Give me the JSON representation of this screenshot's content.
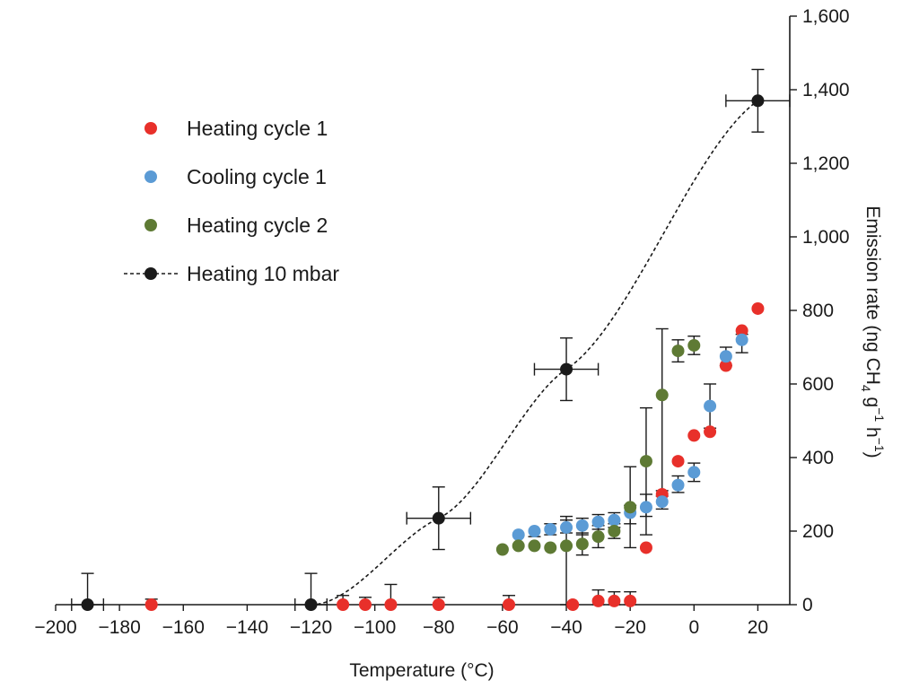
{
  "chart_data": {
    "type": "scatter",
    "title": "",
    "xlabel": "Temperature  (°C)",
    "ylabel": {
      "main": "Emission rate (ng CH",
      "sub": "4",
      "mid": " g",
      "sup1": "−1",
      "mid2": " h",
      "sup2": "−1",
      "end": ")"
    },
    "xlim": [
      -200,
      30
    ],
    "ylim": [
      0,
      1600
    ],
    "xticks": [
      -200,
      -180,
      -160,
      -140,
      -120,
      -100,
      -80,
      -60,
      -40,
      -20,
      0,
      20
    ],
    "xtick_labels": [
      "−200",
      "−180",
      "−160",
      "−140",
      "−120",
      "−100",
      "−80",
      "−60",
      "−40",
      "−20",
      "0",
      "20"
    ],
    "yticks": [
      0,
      200,
      400,
      600,
      800,
      1000,
      1200,
      1400,
      1600
    ],
    "ytick_labels": [
      "0",
      "200",
      "400",
      "600",
      "800",
      "1,000",
      "1,200",
      "1,400",
      "1,600"
    ],
    "y_axis_side": "right",
    "grid": false,
    "legend_position": "upper-left",
    "series": [
      {
        "name": "Heating cycle 1",
        "color": "#e8302a",
        "marker": "circle",
        "points": [
          {
            "x": -170,
            "y": 0,
            "err_up": 15
          },
          {
            "x": -110,
            "y": 0,
            "err_up": 25
          },
          {
            "x": -103,
            "y": 0,
            "err_up": 20
          },
          {
            "x": -95,
            "y": 0,
            "err_up": 55
          },
          {
            "x": -80,
            "y": 0,
            "err_up": 20
          },
          {
            "x": -58,
            "y": 0,
            "err_up": 25
          },
          {
            "x": -38,
            "y": 0
          },
          {
            "x": -30,
            "y": 10,
            "err_up": 30,
            "err_down": 10
          },
          {
            "x": -25,
            "y": 10,
            "err_up": 25,
            "err_down": 10
          },
          {
            "x": -20,
            "y": 10,
            "err_up": 25,
            "err_down": 10
          },
          {
            "x": -15,
            "y": 155
          },
          {
            "x": -10,
            "y": 300
          },
          {
            "x": -5,
            "y": 390
          },
          {
            "x": 0,
            "y": 460
          },
          {
            "x": 5,
            "y": 470
          },
          {
            "x": 10,
            "y": 650
          },
          {
            "x": 15,
            "y": 745
          },
          {
            "x": 20,
            "y": 805
          }
        ]
      },
      {
        "name": "Cooling cycle 1",
        "color": "#5b9bd5",
        "marker": "circle",
        "points": [
          {
            "x": -55,
            "y": 190
          },
          {
            "x": -50,
            "y": 200,
            "err_down": 15
          },
          {
            "x": -45,
            "y": 205,
            "err_up": 15,
            "err_down": 15
          },
          {
            "x": -40,
            "y": 210,
            "err_up": 20,
            "err_down": 15
          },
          {
            "x": -35,
            "y": 215,
            "err_up": 20,
            "err_down": 25
          },
          {
            "x": -30,
            "y": 225,
            "err_up": 20,
            "err_down": 20
          },
          {
            "x": -25,
            "y": 230,
            "err_up": 20,
            "err_down": 20
          },
          {
            "x": -20,
            "y": 250,
            "err_up": 20,
            "err_down": 30
          },
          {
            "x": -15,
            "y": 265,
            "err_up": 35,
            "err_down": 25
          },
          {
            "x": -10,
            "y": 280,
            "err_up": 15,
            "err_down": 20
          },
          {
            "x": -5,
            "y": 325,
            "err_up": 25,
            "err_down": 20
          },
          {
            "x": 0,
            "y": 360,
            "err_up": 25,
            "err_down": 25
          },
          {
            "x": 5,
            "y": 540,
            "err_up": 60,
            "err_down": 60
          },
          {
            "x": 10,
            "y": 675,
            "err_up": 25,
            "err_down": 25
          },
          {
            "x": 15,
            "y": 720,
            "err_up": 15,
            "err_down": 35
          }
        ]
      },
      {
        "name": "Heating cycle 2",
        "color": "#5e7a34",
        "marker": "circle",
        "points": [
          {
            "x": -60,
            "y": 150
          },
          {
            "x": -55,
            "y": 160
          },
          {
            "x": -50,
            "y": 160
          },
          {
            "x": -45,
            "y": 155
          },
          {
            "x": -40,
            "y": 160,
            "err_up": 80,
            "err_down": 160
          },
          {
            "x": -35,
            "y": 165,
            "err_up": 30,
            "err_down": 30
          },
          {
            "x": -30,
            "y": 185,
            "err_up": 30,
            "err_down": 30
          },
          {
            "x": -25,
            "y": 200,
            "err_up": 20,
            "err_down": 20
          },
          {
            "x": -20,
            "y": 265,
            "err_up": 110,
            "err_down": 110
          },
          {
            "x": -15,
            "y": 390,
            "err_up": 145,
            "err_down": 200
          },
          {
            "x": -10,
            "y": 570,
            "err_up": 180,
            "err_down": 260
          },
          {
            "x": -5,
            "y": 690,
            "err_up": 30,
            "err_down": 30
          },
          {
            "x": 0,
            "y": 705,
            "err_up": 25,
            "err_down": 25
          }
        ]
      },
      {
        "name": "Heating 10 mbar",
        "color": "#1a1a1a",
        "marker": "circle",
        "dashed_fit": true,
        "points": [
          {
            "x": -190,
            "y": 0,
            "err_up": 85,
            "xerr": 5
          },
          {
            "x": -120,
            "y": 0,
            "err_up": 85,
            "xerr": 5
          },
          {
            "x": -80,
            "y": 235,
            "err_up": 85,
            "err_down": 85,
            "xerr": 10
          },
          {
            "x": -40,
            "y": 640,
            "err_up": 85,
            "err_down": 85,
            "xerr": 10
          },
          {
            "x": 20,
            "y": 1370,
            "err_up": 85,
            "err_down": 85,
            "xerr": 10
          }
        ]
      }
    ]
  }
}
